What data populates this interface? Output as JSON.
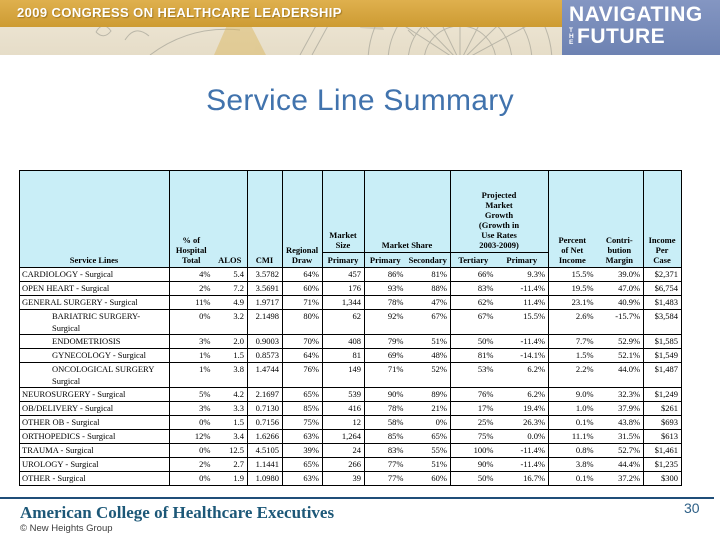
{
  "banner": {
    "congress_title": "2009 CONGRESS ON HEALTHCARE LEADERSHIP",
    "nav_line1": "NAVIGATING",
    "nav_the": "THE",
    "nav_line2": "FUTURE",
    "gold_color": "#cd9b32",
    "blue_color": "#6d82b2"
  },
  "title": "Service Line Summary",
  "table": {
    "headers": {
      "service_lines": "Service Lines",
      "pct_of_hospital_total": "% of\nHospital\nTotal",
      "alos": "ALOS",
      "cmi": "CMI",
      "regional_draw": "Regional\nDraw",
      "market_size": "Market\nSize",
      "market_share": "Market Share",
      "projected_growth": "Projected\nMarket\nGrowth\n(Growth in\nUse Rates\n2003-2009)",
      "percent_net_income": "Percent\nof Net\nIncome",
      "contribution_margin": "Contri-\nbution\nMargin",
      "income_per_case": "Income\nPer Case",
      "sub_primary_size": "Primary",
      "sub_primary_share": "Primary",
      "sub_secondary": "Secondary",
      "sub_tertiary": "Tertiary",
      "sub_primary_growth": "Primary",
      "header_bg_color": "#c9eef7"
    },
    "rows": [
      {
        "name": "CARDIOLOGY - Surgical",
        "indent": false,
        "values": [
          "4%",
          "5.4",
          "3.5782",
          "64%",
          "457",
          "86%",
          "81%",
          "66%",
          "9.3%",
          "15.5%",
          "39.0%",
          "$2,371"
        ]
      },
      {
        "name": "OPEN HEART - Surgical",
        "indent": false,
        "values": [
          "2%",
          "7.2",
          "3.5691",
          "60%",
          "176",
          "93%",
          "88%",
          "83%",
          "-11.4%",
          "19.5%",
          "47.0%",
          "$6,754"
        ]
      },
      {
        "name": "GENERAL SURGERY - Surgical",
        "indent": false,
        "values": [
          "11%",
          "4.9",
          "1.9717",
          "71%",
          "1,344",
          "78%",
          "47%",
          "62%",
          "11.4%",
          "23.1%",
          "40.9%",
          "$1,483"
        ]
      },
      {
        "name": "BARIATRIC SURGERY-Surgical",
        "indent": true,
        "values": [
          "0%",
          "3.2",
          "2.1498",
          "80%",
          "62",
          "92%",
          "67%",
          "67%",
          "15.5%",
          "2.6%",
          "-15.7%",
          "$3,584"
        ]
      },
      {
        "name": "ENDOMETRIOSIS",
        "indent": true,
        "values": [
          "3%",
          "2.0",
          "0.9003",
          "70%",
          "408",
          "79%",
          "51%",
          "50%",
          "-11.4%",
          "7.7%",
          "52.9%",
          "$1,585"
        ]
      },
      {
        "name": "GYNECOLOGY - Surgical",
        "indent": true,
        "values": [
          "1%",
          "1.5",
          "0.8573",
          "64%",
          "81",
          "69%",
          "48%",
          "81%",
          "-14.1%",
          "1.5%",
          "52.1%",
          "$1,549"
        ]
      },
      {
        "name": "ONCOLOGICAL SURGERY\nSurgical",
        "indent": true,
        "values": [
          "1%",
          "3.8",
          "1.4744",
          "76%",
          "149",
          "71%",
          "52%",
          "53%",
          "6.2%",
          "2.2%",
          "44.0%",
          "$1,487"
        ]
      },
      {
        "name": "NEUROSURGERY - Surgical",
        "indent": false,
        "values": [
          "5%",
          "4.2",
          "2.1697",
          "65%",
          "539",
          "90%",
          "89%",
          "76%",
          "6.2%",
          "9.0%",
          "32.3%",
          "$1,249"
        ]
      },
      {
        "name": "OB/DELIVERY - Surgical",
        "indent": false,
        "values": [
          "3%",
          "3.3",
          "0.7130",
          "85%",
          "416",
          "78%",
          "21%",
          "17%",
          "19.4%",
          "1.0%",
          "37.9%",
          "$261"
        ]
      },
      {
        "name": "OTHER OB - Surgical",
        "indent": false,
        "values": [
          "0%",
          "1.5",
          "0.7156",
          "75%",
          "12",
          "58%",
          "0%",
          "25%",
          "26.3%",
          "0.1%",
          "43.8%",
          "$693"
        ]
      },
      {
        "name": "ORTHOPEDICS - Surgical",
        "indent": false,
        "values": [
          "12%",
          "3.4",
          "1.6266",
          "63%",
          "1,264",
          "85%",
          "65%",
          "75%",
          "0.0%",
          "11.1%",
          "31.5%",
          "$613"
        ]
      },
      {
        "name": "TRAUMA - Surgical",
        "indent": false,
        "values": [
          "0%",
          "12.5",
          "4.5105",
          "39%",
          "24",
          "83%",
          "55%",
          "100%",
          "-11.4%",
          "0.8%",
          "52.7%",
          "$1,461"
        ]
      },
      {
        "name": "UROLOGY - Surgical",
        "indent": false,
        "values": [
          "2%",
          "2.7",
          "1.1441",
          "65%",
          "266",
          "77%",
          "51%",
          "90%",
          "-11.4%",
          "3.8%",
          "44.4%",
          "$1,235"
        ]
      },
      {
        "name": "OTHER - Surgical",
        "indent": false,
        "values": [
          "0%",
          "1.9",
          "1.0980",
          "63%",
          "39",
          "77%",
          "60%",
          "50%",
          "16.7%",
          "0.1%",
          "37.2%",
          "$300"
        ]
      }
    ]
  },
  "footer": {
    "organization": "American College of Healthcare Executives",
    "copyright": "© New Heights Group",
    "page_number": "30"
  }
}
